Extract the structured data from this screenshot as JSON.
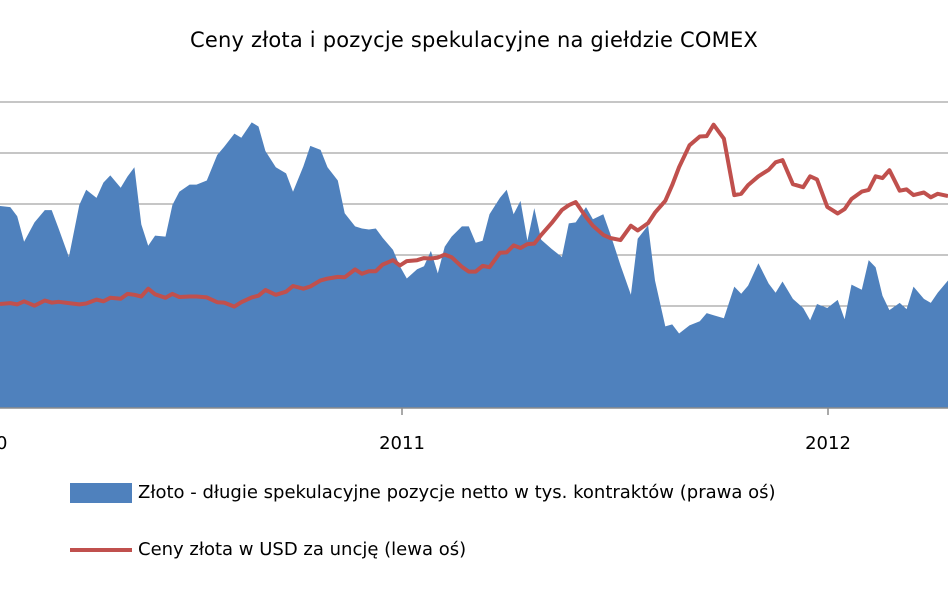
{
  "chart_data": {
    "type": "area+line",
    "title": "Ceny złota i pozycje spekulacyjne na giełdzie COMEX",
    "x_ticks": [
      "0",
      "2011",
      "2012"
    ],
    "grid": true,
    "legend_placement": "bottom",
    "series": [
      {
        "name": "Złoto - długie spekulacyjne pozycje netto w tys. kontraktów (prawa oś)",
        "type": "area",
        "color": "#4F81BD",
        "x": [
          2009.55,
          2009.58,
          2009.6,
          2009.62,
          2009.65,
          2009.68,
          2009.7,
          2009.72,
          2009.75,
          2009.78,
          2009.8,
          2009.83,
          2009.85,
          2009.87,
          2009.9,
          2009.92,
          2009.94,
          2009.96,
          2009.98,
          2010.0,
          2010.03,
          2010.05,
          2010.07,
          2010.1,
          2010.12,
          2010.15,
          2010.18,
          2010.2,
          2010.23,
          2010.25,
          2010.28,
          2010.3,
          2010.32,
          2010.35,
          2010.38,
          2010.4,
          2010.43,
          2010.45,
          2010.48,
          2010.5,
          2010.53,
          2010.55,
          2010.58,
          2010.6,
          2010.62,
          2010.64,
          2010.66,
          2010.69,
          2010.71,
          2010.73,
          2010.76,
          2010.78,
          2010.8,
          2010.82,
          2010.84,
          2010.86,
          2010.89,
          2010.91,
          2010.93,
          2010.95,
          2010.97,
          2011.0,
          2011.02,
          2011.04,
          2011.06,
          2011.08,
          2011.1,
          2011.12,
          2011.15,
          2011.18,
          2011.2,
          2011.22,
          2011.25,
          2011.27,
          2011.3,
          2011.32,
          2011.35,
          2011.38,
          2011.4,
          2011.43,
          2011.45,
          2011.48,
          2011.5,
          2011.52,
          2011.55,
          2011.58,
          2011.6,
          2011.62,
          2011.65,
          2011.68,
          2011.7,
          2011.72,
          2011.75,
          2011.78,
          2011.8,
          2011.82,
          2011.85,
          2011.88,
          2011.9,
          2011.92,
          2011.95,
          2011.98,
          2012.0,
          2012.02,
          2012.05,
          2012.07,
          2012.09,
          2012.11,
          2012.13,
          2012.16,
          2012.18,
          2012.2,
          2012.23,
          2012.25,
          2012.27,
          2012.3
        ],
        "values": [
          198,
          197,
          188,
          163,
          182,
          194,
          194,
          176,
          148,
          199,
          214,
          206,
          221,
          228,
          216,
          227,
          236,
          180,
          159,
          169,
          168,
          199,
          212,
          219,
          219,
          223,
          248,
          256,
          269,
          265,
          280,
          276,
          252,
          236,
          230,
          212,
          237,
          257,
          253,
          236,
          223,
          191,
          178,
          176,
          175,
          176,
          167,
          155,
          139,
          127,
          136,
          139,
          154,
          132,
          158,
          168,
          178,
          178,
          162,
          164,
          190,
          206,
          214,
          190,
          203,
          164,
          196,
          165,
          156,
          148,
          181,
          182,
          197,
          185,
          190,
          171,
          140,
          111,
          166,
          179,
          125,
          80,
          82,
          73,
          81,
          85,
          93,
          91,
          88,
          119,
          112,
          120,
          142,
          122,
          113,
          124,
          107,
          98,
          86,
          102,
          98,
          106,
          87,
          121,
          116,
          145,
          138,
          110,
          96,
          103,
          97,
          119,
          107,
          103,
          113,
          125
        ]
      },
      {
        "name": "Ceny złota w USD za uncję (lewa oś)",
        "type": "line",
        "color": "#C0504D",
        "x": [
          2009.55,
          2009.58,
          2009.6,
          2009.62,
          2009.65,
          2009.68,
          2009.7,
          2009.72,
          2009.75,
          2009.78,
          2009.8,
          2009.83,
          2009.85,
          2009.87,
          2009.9,
          2009.92,
          2009.94,
          2009.96,
          2009.98,
          2010.0,
          2010.03,
          2010.05,
          2010.07,
          2010.1,
          2010.12,
          2010.15,
          2010.18,
          2010.2,
          2010.23,
          2010.25,
          2010.28,
          2010.3,
          2010.32,
          2010.35,
          2010.38,
          2010.4,
          2010.43,
          2010.45,
          2010.48,
          2010.5,
          2010.53,
          2010.55,
          2010.58,
          2010.6,
          2010.62,
          2010.64,
          2010.66,
          2010.69,
          2010.71,
          2010.73,
          2010.76,
          2010.78,
          2010.8,
          2010.82,
          2010.84,
          2010.86,
          2010.89,
          2010.91,
          2010.93,
          2010.95,
          2010.97,
          2011.0,
          2011.02,
          2011.04,
          2011.06,
          2011.08,
          2011.1,
          2011.12,
          2011.15,
          2011.18,
          2011.2,
          2011.22,
          2011.25,
          2011.27,
          2011.3,
          2011.32,
          2011.35,
          2011.38,
          2011.4,
          2011.43,
          2011.45,
          2011.48,
          2011.5,
          2011.52,
          2011.55,
          2011.58,
          2011.6,
          2011.62,
          2011.65,
          2011.68,
          2011.7,
          2011.72,
          2011.75,
          2011.78,
          2011.8,
          2011.82,
          2011.85,
          2011.88,
          2011.9,
          2011.92,
          2011.95,
          2011.98,
          2012.0,
          2012.02,
          2012.05,
          2012.07,
          2012.09,
          2012.11,
          2012.13,
          2012.16,
          2012.18,
          2012.2,
          2012.23,
          2012.25,
          2012.27,
          2012.3
        ],
        "values": [
          938,
          940,
          937,
          944,
          934,
          946,
          941,
          943,
          940,
          937,
          939,
          948,
          944,
          952,
          950,
          961,
          959,
          955,
          973,
          960,
          952,
          961,
          954,
          955,
          955,
          953,
          942,
          941,
          932,
          942,
          953,
          957,
          970,
          959,
          966,
          979,
          973,
          978,
          992,
          996,
          1000,
          999,
          1017,
          1007,
          1013,
          1013,
          1028,
          1038,
          1026,
          1036,
          1038,
          1043,
          1042,
          1044,
          1051,
          1045,
          1023,
          1012,
          1012,
          1025,
          1022,
          1055,
          1056,
          1072,
          1066,
          1075,
          1076,
          1096,
          1123,
          1153,
          1164,
          1171,
          1137,
          1117,
          1096,
          1089,
          1084,
          1117,
          1106,
          1123,
          1147,
          1174,
          1210,
          1251,
          1301,
          1321,
          1322,
          1348,
          1316,
          1187,
          1190,
          1210,
          1230,
          1245,
          1262,
          1267,
          1212,
          1205,
          1230,
          1223,
          1160,
          1145,
          1155,
          1178,
          1195,
          1199,
          1230,
          1226,
          1244,
          1197,
          1200,
          1187,
          1193,
          1182,
          1190,
          1185
        ]
      }
    ]
  }
}
